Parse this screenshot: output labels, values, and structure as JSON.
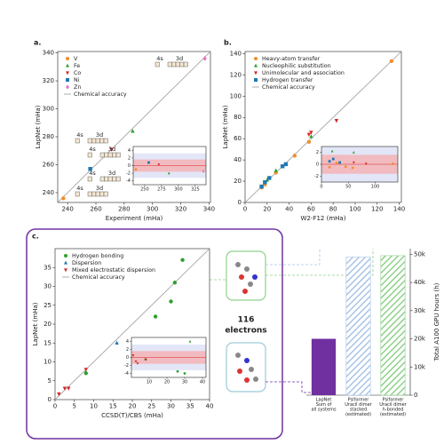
{
  "chart_data": [
    {
      "type": "scatter",
      "panel_label": "a.",
      "xlabel": "Experiment (mHa)",
      "ylabel": "LapNet (mHa)",
      "xlim": [
        233,
        341
      ],
      "ylim": [
        233,
        341
      ],
      "xticks": [
        240,
        260,
        280,
        300,
        320,
        340
      ],
      "yticks": [
        240,
        260,
        280,
        300,
        320,
        340
      ],
      "accuracy_label": "Chemical accuracy",
      "series": [
        {
          "name": "V",
          "color": "#f28e2b",
          "marker": "o",
          "x": [
            237
          ],
          "values": [
            236
          ]
        },
        {
          "name": "Fe",
          "color": "#2ca02c",
          "marker": "^",
          "x": [
            286
          ],
          "values": [
            284
          ]
        },
        {
          "name": "Co",
          "color": "#d62728",
          "marker": "v",
          "x": [
            271
          ],
          "values": [
            271
          ]
        },
        {
          "name": "Ni",
          "color": "#1f77b4",
          "marker": "s",
          "x": [
            256
          ],
          "values": [
            257
          ]
        },
        {
          "name": "Zn",
          "color": "#e377c2",
          "marker": "D",
          "x": [
            337
          ],
          "values": [
            336
          ]
        }
      ],
      "annotations": [
        "4s",
        "3d",
        "4s",
        "3d",
        "4s",
        "3d",
        "4s",
        "3d",
        "4s",
        "3d"
      ],
      "inset": {
        "xlim": [
          233,
          341
        ],
        "ylim": [
          -5,
          5
        ],
        "xticks": [
          250,
          275,
          300,
          325
        ],
        "yticks": [
          -4,
          -2,
          0,
          2,
          4
        ],
        "bands": [
          1.6,
          3.2
        ],
        "series": [
          {
            "color": "#f28e2b",
            "marker": "o",
            "x": [
              237
            ],
            "values": [
              -1
            ]
          },
          {
            "color": "#2ca02c",
            "marker": "^",
            "x": [
              286
            ],
            "values": [
              -2
            ]
          },
          {
            "color": "#d62728",
            "marker": "v",
            "x": [
              271
            ],
            "values": [
              0.3
            ]
          },
          {
            "color": "#1f77b4",
            "marker": "s",
            "x": [
              256
            ],
            "values": [
              0.8
            ]
          },
          {
            "color": "#e377c2",
            "marker": "D",
            "x": [
              337
            ],
            "values": [
              -1.5
            ]
          }
        ]
      }
    },
    {
      "type": "scatter",
      "panel_label": "b.",
      "xlabel": "W2-F12 (mHa)",
      "ylabel": "LapNet (mHa)",
      "xlim": [
        0,
        142
      ],
      "ylim": [
        0,
        142
      ],
      "xticks": [
        0,
        20,
        40,
        60,
        80,
        100,
        120,
        140
      ],
      "yticks": [
        0,
        20,
        40,
        60,
        80,
        100,
        120,
        140
      ],
      "accuracy_label": "Chemical accuracy",
      "series": [
        {
          "name": "Heavy-atom transfer",
          "color": "#f28e2b",
          "marker": "o",
          "x": [
            15,
            18,
            28,
            45,
            58,
            133
          ],
          "values": [
            14,
            17,
            28,
            44,
            57,
            133
          ]
        },
        {
          "name": "Nucleophilic substitution",
          "color": "#2ca02c",
          "marker": "^",
          "x": [
            20,
            28,
            60
          ],
          "values": [
            21,
            30,
            62
          ]
        },
        {
          "name": "Unimolecular and association",
          "color": "#d62728",
          "marker": "v",
          "x": [
            58,
            60,
            83
          ],
          "values": [
            64,
            66,
            77
          ]
        },
        {
          "name": "Hydrogen transfer",
          "color": "#1f77b4",
          "marker": "s",
          "x": [
            15,
            18,
            22,
            34,
            37
          ],
          "values": [
            15,
            19,
            23,
            34,
            36
          ]
        }
      ],
      "inset": {
        "xlim": [
          0,
          142
        ],
        "ylim": [
          -3,
          3
        ],
        "xticks": [
          0,
          50,
          100
        ],
        "yticks": [
          -2,
          0,
          2
        ],
        "bands": [
          1.6,
          3.2
        ],
        "series": [
          {
            "color": "#f28e2b",
            "marker": "o",
            "x": [
              15,
              28,
              45,
              58,
              133
            ],
            "values": [
              -0.5,
              0.2,
              -0.4,
              -0.6,
              0.1
            ]
          },
          {
            "color": "#2ca02c",
            "marker": "^",
            "x": [
              20,
              60
            ],
            "values": [
              2.2,
              2
            ]
          },
          {
            "color": "#d62728",
            "marker": "v",
            "x": [
              60,
              83
            ],
            "values": [
              0.3,
              0.1
            ]
          },
          {
            "color": "#1f77b4",
            "marker": "s",
            "x": [
              15,
              22,
              34
            ],
            "values": [
              0.5,
              0.9,
              0.3
            ]
          }
        ]
      }
    },
    {
      "type": "scatter",
      "panel_label": "c.",
      "xlabel": "CCSD(T)/CBS (mHa)",
      "ylabel": "LapNet (mHa)",
      "xlim": [
        0,
        40
      ],
      "ylim": [
        0,
        40
      ],
      "xticks": [
        0,
        5,
        10,
        15,
        20,
        25,
        30,
        35,
        40
      ],
      "yticks": [
        0,
        5,
        10,
        15,
        20,
        25,
        30,
        35
      ],
      "accuracy_label": "Chemical accuracy",
      "note": "116",
      "note2": "electrons",
      "series": [
        {
          "name": "Hydrogen bonding",
          "color": "#2ca02c",
          "marker": "o",
          "x": [
            8,
            26,
            30,
            31,
            33
          ],
          "values": [
            7,
            22,
            26,
            31,
            37
          ]
        },
        {
          "name": "Dispersion",
          "color": "#1f77b4",
          "marker": "^",
          "x": [
            16
          ],
          "values": [
            15
          ]
        },
        {
          "name": "Mixed electrostatic dispersion",
          "color": "#d62728",
          "marker": "v",
          "x": [
            1,
            2.5,
            3.5,
            8
          ],
          "values": [
            1.5,
            3,
            3,
            8
          ]
        }
      ],
      "inset": {
        "xlim": [
          0,
          42
        ],
        "ylim": [
          -5,
          5
        ],
        "xticks": [
          10,
          20,
          30,
          40
        ],
        "yticks": [
          -4,
          -2,
          0,
          2,
          4
        ],
        "bands": [
          1.6,
          3.2
        ],
        "series": [
          {
            "color": "#2ca02c",
            "marker": "o",
            "x": [
              8,
              26,
              30
            ],
            "values": [
              -0.5,
              -3.5,
              -4
            ]
          },
          {
            "color": "#2ca02c",
            "marker": "^",
            "x": [
              33
            ],
            "values": [
              4
            ]
          },
          {
            "color": "#d62728",
            "marker": "v",
            "x": [
              1,
              2.5,
              3.5,
              8
            ],
            "values": [
              0.5,
              -1,
              -1.5,
              -0.5
            ]
          }
        ]
      }
    },
    {
      "type": "bar",
      "ylabel": "Total A100 GPU hours (h)",
      "categories": [
        [
          "LapNet",
          "Sum of",
          "all systems"
        ],
        [
          "Psiformer",
          "Uracil dimer",
          "stacked",
          "(estimated)"
        ],
        [
          "Psiformer",
          "Uracil dimer",
          "h-bonded",
          "(estimated)"
        ]
      ],
      "values": [
        20000,
        49000,
        49500
      ],
      "colors": [
        "#7030a0",
        "#a9c4e6",
        "#8fd18a"
      ],
      "hatched": [
        false,
        true,
        true
      ],
      "ylim": [
        0,
        52000
      ],
      "yticks": [
        0,
        {
          "value": 10000,
          "label": "10k"
        },
        {
          "value": 20000,
          "label": "20k"
        },
        {
          "value": 30000,
          "label": "30k"
        },
        {
          "value": 40000,
          "label": "40k"
        },
        {
          "value": 50000,
          "label": "50k"
        }
      ]
    }
  ]
}
